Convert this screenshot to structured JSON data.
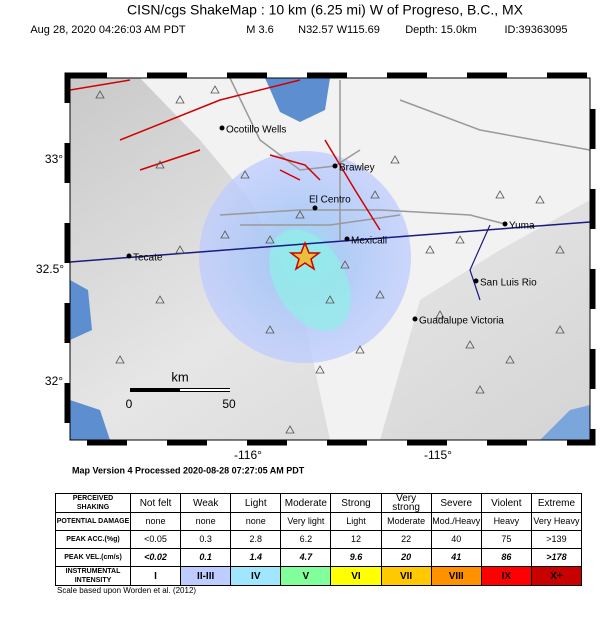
{
  "header": {
    "title": "CISN/cgs ShakeMap : 10 km (6.25 mi) W of Progreso, B.C., MX",
    "details": [
      "Aug 28, 2020 04:26:03 AM PDT",
      "M 3.6",
      "N32.57 W115.69",
      "Depth: 15.0km",
      "ID:39363095"
    ]
  },
  "map": {
    "lat_labels": [
      "33°",
      "32.5°",
      "32°"
    ],
    "lon_labels": [
      "-116°",
      "-115°"
    ],
    "cities": [
      "Ocotillo Wells",
      "Brawley",
      "El Centro",
      "Mexicali",
      "Yuma",
      "Tecate",
      "San Luis Rio",
      "Guadalupe Victoria"
    ],
    "scale": {
      "unit": "km",
      "labels": [
        "0",
        "50"
      ]
    }
  },
  "version": "Map Version 4 Processed 2020-08-28 07:27:05 AM PDT",
  "legend_table": {
    "rows": [
      {
        "label": "PERCEIVED SHAKING",
        "cells": [
          "Not felt",
          "Weak",
          "Light",
          "Moderate",
          "Strong",
          "Very strong",
          "Severe",
          "Violent",
          "Extreme"
        ]
      },
      {
        "label": "POTENTIAL DAMAGE",
        "cells": [
          "none",
          "none",
          "none",
          "Very light",
          "Light",
          "Moderate",
          "Mod./Heavy",
          "Heavy",
          "Very Heavy"
        ]
      },
      {
        "label": "PEAK ACC.(%g)",
        "cells": [
          "<0.05",
          "0.3",
          "2.8",
          "6.2",
          "12",
          "22",
          "40",
          "75",
          ">139"
        ]
      },
      {
        "label": "PEAK VEL.(cm/s)",
        "cells": [
          "<0.02",
          "0.1",
          "1.4",
          "4.7",
          "9.6",
          "20",
          "41",
          "86",
          ">178"
        ]
      },
      {
        "label": "INSTRUMENTAL INTENSITY",
        "cells": [
          "I",
          "II-III",
          "IV",
          "V",
          "VI",
          "VII",
          "VIII",
          "IX",
          "X+"
        ]
      }
    ],
    "intensity_colors": [
      "#ffffff",
      "#bfccff",
      "#a0e6ff",
      "#80ff9a",
      "#ffff00",
      "#ffc800",
      "#ff9100",
      "#ff0000",
      "#c80000"
    ]
  },
  "footnote": "Scale based upon Worden et al. (2012)"
}
